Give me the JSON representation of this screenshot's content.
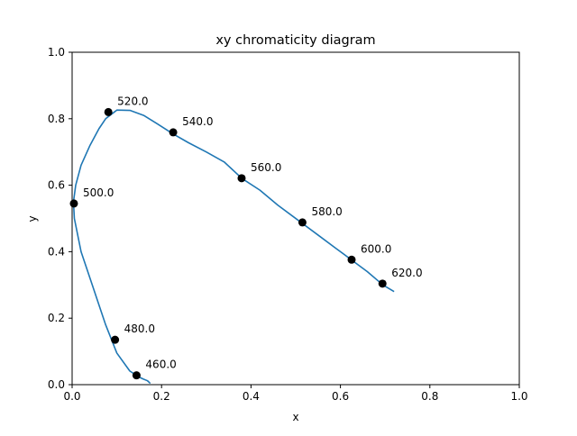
{
  "chart_data": {
    "type": "line",
    "title": "xy chromaticity diagram",
    "xlabel": "x",
    "ylabel": "y",
    "xlim": [
      0,
      1
    ],
    "ylim": [
      0,
      1
    ],
    "xticks": [
      "0.0",
      "0.2",
      "0.4",
      "0.6",
      "0.8",
      "1.0"
    ],
    "yticks": [
      "0.0",
      "0.2",
      "0.4",
      "0.6",
      "0.8",
      "1.0"
    ],
    "grid": false,
    "colors": {
      "line": "#1f77b4",
      "markers": "#000000"
    },
    "series": [
      {
        "x": [
          0.175,
          0.174,
          0.173,
          0.172,
          0.171,
          0.168,
          0.159,
          0.151,
          0.144,
          0.129,
          0.1,
          0.075,
          0.065,
          0.045,
          0.02,
          0.005,
          0.003,
          0.008,
          0.02,
          0.04,
          0.06,
          0.075,
          0.1,
          0.13,
          0.16,
          0.19,
          0.225,
          0.26,
          0.3,
          0.34,
          0.38,
          0.42,
          0.46,
          0.51,
          0.55,
          0.59,
          0.625,
          0.66,
          0.695,
          0.72
        ],
        "y": [
          0.005,
          0.005,
          0.006,
          0.007,
          0.009,
          0.012,
          0.017,
          0.022,
          0.028,
          0.041,
          0.095,
          0.18,
          0.22,
          0.3,
          0.4,
          0.5,
          0.55,
          0.6,
          0.66,
          0.72,
          0.77,
          0.8,
          0.826,
          0.825,
          0.81,
          0.785,
          0.755,
          0.728,
          0.7,
          0.67,
          0.62,
          0.585,
          0.54,
          0.49,
          0.45,
          0.41,
          0.375,
          0.34,
          0.3,
          0.28
        ]
      }
    ],
    "labeled_points": [
      {
        "label": "460.0",
        "x": 0.144,
        "y": 0.028
      },
      {
        "label": "480.0",
        "x": 0.096,
        "y": 0.135
      },
      {
        "label": "500.0",
        "x": 0.004,
        "y": 0.545
      },
      {
        "label": "520.0",
        "x": 0.081,
        "y": 0.82
      },
      {
        "label": "540.0",
        "x": 0.226,
        "y": 0.759
      },
      {
        "label": "560.0",
        "x": 0.379,
        "y": 0.621
      },
      {
        "label": "580.0",
        "x": 0.515,
        "y": 0.488
      },
      {
        "label": "600.0",
        "x": 0.625,
        "y": 0.376
      },
      {
        "label": "620.0",
        "x": 0.694,
        "y": 0.304
      }
    ]
  }
}
